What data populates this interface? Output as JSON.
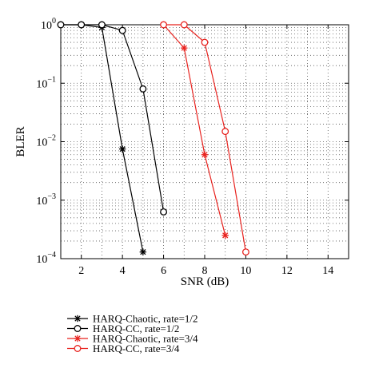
{
  "chart_data": {
    "type": "line",
    "title": "",
    "xlabel": "SNR (dB)",
    "ylabel": "BLER",
    "xlim": [
      1,
      15
    ],
    "ylim": [
      0.0001,
      1
    ],
    "yscale": "log",
    "grid": true,
    "x_ticks": [
      2,
      4,
      6,
      8,
      10,
      12,
      14
    ],
    "y_ticks": [
      {
        "value": 1,
        "base": "10",
        "exp": "0"
      },
      {
        "value": 0.1,
        "base": "10",
        "exp": "−1"
      },
      {
        "value": 0.01,
        "base": "10",
        "exp": "−2"
      },
      {
        "value": 0.001,
        "base": "10",
        "exp": "−3"
      },
      {
        "value": 0.0001,
        "base": "10",
        "exp": "−4"
      }
    ],
    "legend_position": "below",
    "series": [
      {
        "name": "HARQ-Chaotic, rate=1/2",
        "color": "#000000",
        "marker": "asterisk",
        "x": [
          1,
          2,
          3,
          4,
          5
        ],
        "y": [
          1,
          1,
          0.9,
          0.0075,
          0.00013
        ]
      },
      {
        "name": "HARQ-CC, rate=1/2",
        "color": "#000000",
        "marker": "circle",
        "x": [
          1,
          2,
          3,
          4,
          5,
          6
        ],
        "y": [
          1,
          1,
          1,
          0.8,
          0.08,
          0.00063
        ]
      },
      {
        "name": "HARQ-Chaotic, rate=3/4",
        "color": "#e8231f",
        "marker": "asterisk",
        "x": [
          6,
          7,
          8,
          9
        ],
        "y": [
          1,
          0.4,
          0.006,
          0.00025
        ]
      },
      {
        "name": "HARQ-CC, rate=3/4",
        "color": "#e8231f",
        "marker": "circle",
        "x": [
          6,
          7,
          8,
          9,
          10
        ],
        "y": [
          1,
          1,
          0.5,
          0.015,
          0.00013
        ]
      }
    ]
  }
}
